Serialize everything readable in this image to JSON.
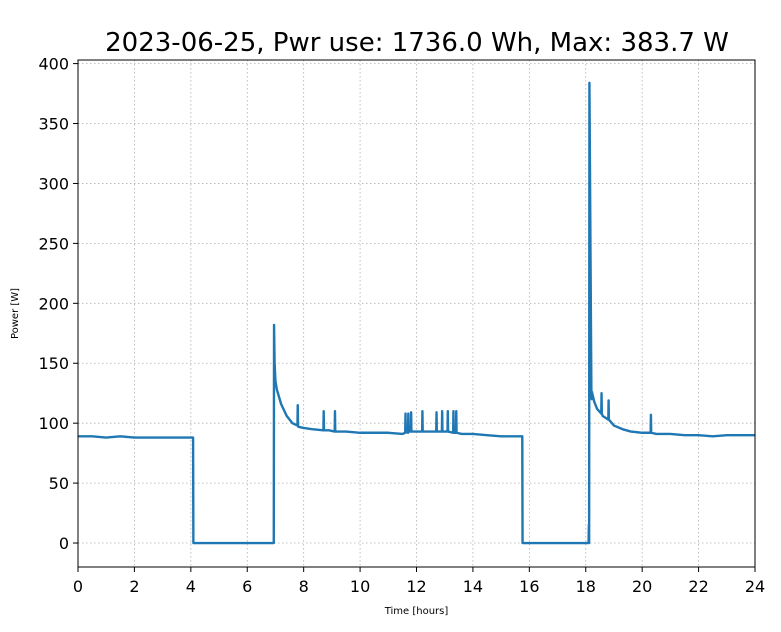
{
  "chart_data": {
    "type": "line",
    "title": "2023-06-25, Pwr use: 1736.0 Wh, Max: 383.7 W",
    "xlabel": "Time [hours]",
    "ylabel": "Power [W]",
    "xlim": [
      0,
      24
    ],
    "ylim": [
      -20,
      403
    ],
    "xticks": [
      0,
      2,
      4,
      6,
      8,
      10,
      12,
      14,
      16,
      18,
      20,
      22,
      24
    ],
    "yticks": [
      0,
      50,
      100,
      150,
      200,
      250,
      300,
      350,
      400
    ],
    "grid": true,
    "color": "#1f77b4",
    "series": [
      {
        "x": [
          0,
          0.5,
          1.0,
          1.5,
          2.0,
          2.5,
          3.0,
          3.5,
          4.0,
          4.08,
          4.09,
          6.94,
          6.95,
          6.97,
          7.0,
          7.05,
          7.1,
          7.2,
          7.4,
          7.6,
          7.78,
          7.79,
          7.8,
          7.81,
          8.0,
          8.3,
          8.7,
          8.71,
          8.72,
          8.9,
          9.1,
          9.11,
          9.12,
          9.5,
          10.0,
          10.5,
          11.0,
          11.5,
          11.6,
          11.61,
          11.62,
          11.7,
          11.71,
          11.72,
          11.8,
          11.81,
          11.82,
          12.0,
          12.2,
          12.21,
          12.22,
          12.4,
          12.7,
          12.71,
          12.72,
          12.9,
          12.91,
          12.92,
          13.1,
          13.11,
          13.12,
          13.3,
          13.31,
          13.32,
          13.4,
          13.41,
          13.42,
          13.6,
          14.0,
          14.5,
          15.0,
          15.5,
          15.75,
          15.76,
          18.1,
          18.11,
          18.12,
          18.13,
          18.2,
          18.21,
          18.22,
          18.3,
          18.4,
          18.55,
          18.56,
          18.57,
          18.6,
          18.8,
          18.81,
          18.82,
          19.0,
          19.3,
          19.6,
          20.0,
          20.3,
          20.31,
          20.32,
          20.5,
          21.0,
          21.5,
          22.0,
          22.5,
          23.0,
          23.5,
          24.0
        ],
        "y": [
          89,
          89,
          88,
          89,
          88,
          88,
          88,
          88,
          88,
          88,
          0,
          0,
          182,
          150,
          135,
          128,
          124,
          116,
          106,
          100,
          98,
          115,
          98,
          97,
          96,
          95,
          94,
          110,
          94,
          94,
          93,
          110,
          93,
          93,
          92,
          92,
          92,
          91,
          92,
          108,
          93,
          92,
          108,
          93,
          93,
          109,
          93,
          93,
          93,
          110,
          93,
          93,
          93,
          109,
          93,
          93,
          110,
          93,
          93,
          110,
          93,
          92,
          110,
          92,
          92,
          110,
          92,
          91,
          91,
          90,
          89,
          89,
          89,
          0,
          0,
          15,
          0,
          384,
          125,
          120,
          126,
          118,
          112,
          108,
          125,
          108,
          106,
          103,
          119,
          103,
          98,
          95,
          93,
          92,
          92,
          107,
          92,
          91,
          91,
          90,
          90,
          89,
          90,
          90,
          90
        ]
      }
    ]
  }
}
